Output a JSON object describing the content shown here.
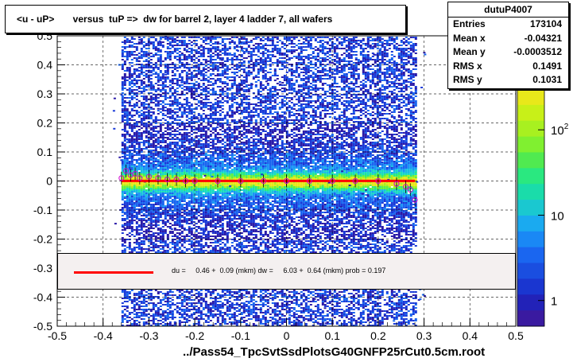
{
  "title": "<u - uP>       versus  tuP =>  dw for barrel 2, layer 4 ladder 7, all wafers",
  "stats": {
    "name": "dutuP4007",
    "rows": [
      {
        "label": "Entries",
        "value": "173104"
      },
      {
        "label": "Mean x",
        "value": "-0.04321"
      },
      {
        "label": "Mean y",
        "value": "-0.0003512"
      },
      {
        "label": "RMS x",
        "value": "0.1491"
      },
      {
        "label": "RMS y",
        "value": "0.1031"
      }
    ]
  },
  "fit_text": "du =     0.46 +  0.09 (mkm) dw =     6.03 +  0.64 (mkm) prob = 0.197",
  "colors": {
    "fit_line": "#ff0000",
    "profile_marker": "#cc00cc",
    "fit_box_bg": "#f4f0f0"
  },
  "chart_data": {
    "type": "heatmap",
    "title": "<u - uP>       versus  tuP =>  dw for barrel 2, layer 4 ladder 7, all wafers",
    "xlabel": "../Pass54_TpcSvtSsdPlotsG40GNFP25rCut0.5cm.root",
    "ylabel": "",
    "xlim": [
      -0.5,
      0.5
    ],
    "ylim": [
      -0.5,
      0.5
    ],
    "x_ticks": [
      "-0.5",
      "-0.4",
      "-0.3",
      "-0.2",
      "-0.1",
      "0",
      "0.1",
      "0.2",
      "0.3",
      "0.4",
      "0.5"
    ],
    "y_ticks": [
      "-0.5",
      "-0.4",
      "-0.3",
      "-0.2",
      "-0.1",
      "0",
      "0.1",
      "0.2",
      "0.3",
      "0.4",
      "0.5"
    ],
    "x_tick_values": [
      -0.5,
      -0.4,
      -0.3,
      -0.2,
      -0.1,
      0,
      0.1,
      0.2,
      0.3,
      0.4,
      0.5
    ],
    "y_tick_values": [
      -0.5,
      -0.4,
      -0.3,
      -0.2,
      -0.1,
      0,
      0.1,
      0.2,
      0.3,
      0.4,
      0.5
    ],
    "grid": true,
    "data_x_range": [
      -0.36,
      0.28
    ],
    "colorbar": {
      "scale": "log",
      "labels": [
        "1",
        "10",
        "10^2"
      ],
      "label_values": [
        1,
        10,
        100
      ],
      "range": [
        0.5,
        300
      ]
    },
    "profile": {
      "x": [
        -0.36,
        -0.35,
        -0.34,
        -0.33,
        -0.32,
        -0.3,
        -0.28,
        -0.26,
        -0.24,
        -0.22,
        -0.2,
        -0.15,
        -0.1,
        -0.05,
        0,
        0.05,
        0.1,
        0.15,
        0.2,
        0.24,
        0.26,
        0.27,
        0.28
      ],
      "y": [
        0.01,
        0.035,
        0.02,
        0.025,
        0.01,
        0.015,
        0.01,
        0.005,
        0.005,
        0.0,
        0.0,
        0.0,
        0.0,
        0.0,
        0.0,
        0.0,
        0.0,
        0.0,
        0.0,
        -0.01,
        -0.02,
        -0.03,
        -0.065
      ]
    },
    "fit": {
      "slope": 0,
      "intercept": 0.0005,
      "x_range": [
        -0.36,
        0.28
      ]
    }
  }
}
